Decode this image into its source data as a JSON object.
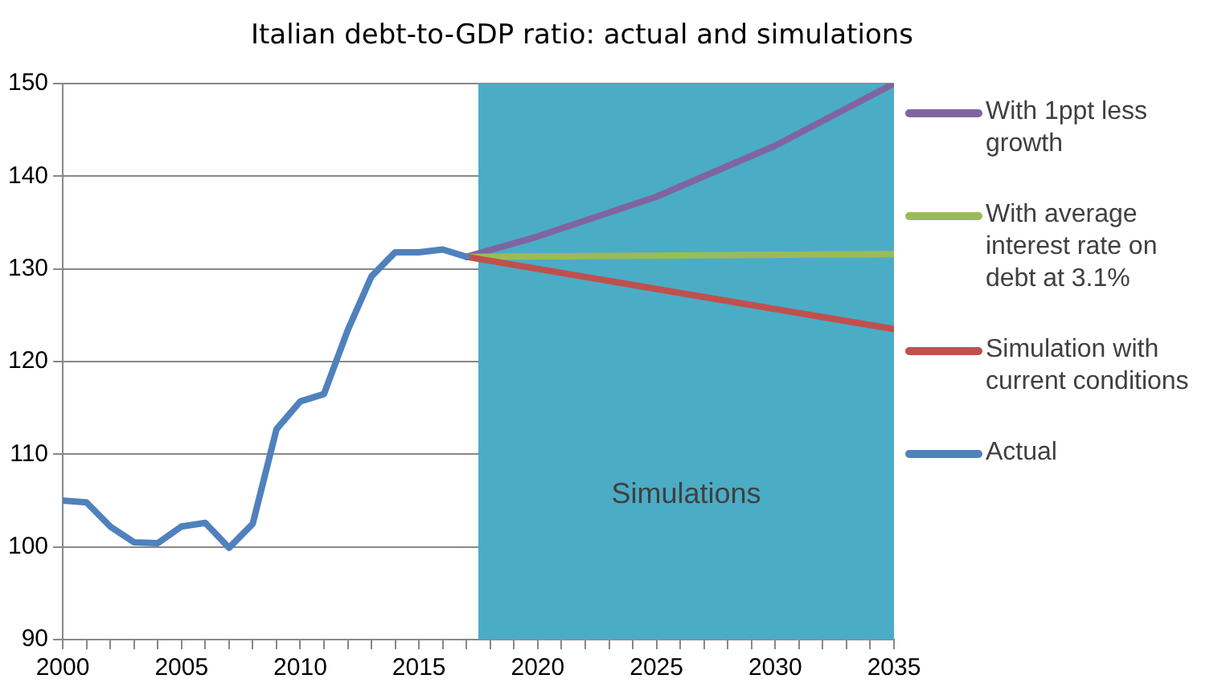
{
  "chart_data": {
    "type": "line",
    "title": "Italian debt-to-GDP ratio: actual and simulations",
    "series": [
      {
        "name": "With 1ppt less growth",
        "color": "#8064a2",
        "x": [
          2017,
          2020,
          2025,
          2030,
          2035
        ],
        "values": [
          131.3,
          133.5,
          137.8,
          143.3,
          150
        ]
      },
      {
        "name": "With average interest rate on debt at 3.1%",
        "color": "#9bbb59",
        "x": [
          2017,
          2035
        ],
        "values": [
          131.3,
          131.6
        ]
      },
      {
        "name": "Simulation with current conditions",
        "color": "#c0504d",
        "x": [
          2017,
          2035
        ],
        "values": [
          131.3,
          123.5
        ]
      },
      {
        "name": "Actual",
        "color": "#4f81bd",
        "x": [
          2000,
          2001,
          2002,
          2003,
          2004,
          2005,
          2006,
          2007,
          2008,
          2009,
          2010,
          2011,
          2012,
          2013,
          2014,
          2015,
          2016,
          2017
        ],
        "values": [
          105.0,
          104.8,
          102.2,
          100.5,
          100.4,
          102.2,
          102.6,
          99.9,
          102.5,
          112.7,
          115.7,
          116.5,
          123.4,
          129.2,
          131.8,
          131.8,
          132.1,
          131.3
        ]
      }
    ],
    "xlim": [
      2000,
      2035
    ],
    "xticks": [
      2000,
      {
        "value": 2001,
        "label": null
      },
      {
        "value": 2002,
        "label": null
      },
      {
        "value": 2003,
        "label": null
      },
      {
        "value": 2004,
        "label": null
      },
      2005,
      {
        "value": 2006,
        "label": null
      },
      {
        "value": 2007,
        "label": null
      },
      {
        "value": 2008,
        "label": null
      },
      {
        "value": 2009,
        "label": null
      },
      2010,
      {
        "value": 2011,
        "label": null
      },
      {
        "value": 2012,
        "label": null
      },
      {
        "value": 2013,
        "label": null
      },
      {
        "value": 2014,
        "label": null
      },
      2015,
      {
        "value": 2016,
        "label": null
      },
      {
        "value": 2017,
        "label": null
      },
      {
        "value": 2018,
        "label": null
      },
      {
        "value": 2019,
        "label": null
      },
      2020,
      {
        "value": 2021,
        "label": null
      },
      {
        "value": 2022,
        "label": null
      },
      {
        "value": 2023,
        "label": null
      },
      {
        "value": 2024,
        "label": null
      },
      2025,
      {
        "value": 2026,
        "label": null
      },
      {
        "value": 2027,
        "label": null
      },
      {
        "value": 2028,
        "label": null
      },
      {
        "value": 2029,
        "label": null
      },
      2030,
      {
        "value": 2031,
        "label": null
      },
      {
        "value": 2032,
        "label": null
      },
      {
        "value": 2033,
        "label": null
      },
      {
        "value": 2034,
        "label": null
      },
      2035
    ],
    "ylim": [
      90,
      150
    ],
    "yticks": [
      90,
      100,
      110,
      120,
      130,
      140,
      150
    ],
    "bands": [
      {
        "axis": "x",
        "from": 2017.5,
        "to": 2035,
        "label": "Simulations",
        "color": "#4bacc6"
      }
    ],
    "grid": "y",
    "legend": "right",
    "marker": "none",
    "line_style": "solid"
  }
}
